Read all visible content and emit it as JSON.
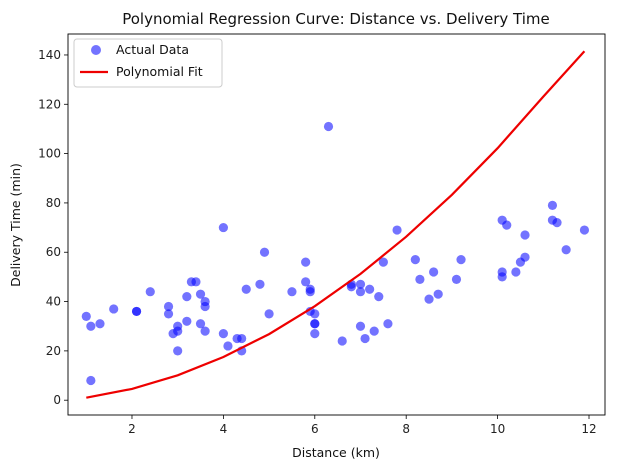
{
  "chart_data": {
    "type": "scatter",
    "title": "Polynomial Regression Curve: Distance vs. Delivery Time",
    "xlabel": "Distance (km)",
    "ylabel": "Delivery Time (min)",
    "xlim": [
      0.6,
      12.35
    ],
    "ylim": [
      -6,
      148.5
    ],
    "xticks": [
      2,
      4,
      6,
      8,
      10,
      12
    ],
    "yticks": [
      0,
      20,
      40,
      60,
      80,
      100,
      120,
      140
    ],
    "grid": false,
    "legend_position": "top-left",
    "series": [
      {
        "name": "Actual Data",
        "kind": "scatter",
        "color": "#0000ff",
        "opacity": 0.55,
        "points": [
          [
            1.0,
            34
          ],
          [
            1.1,
            8
          ],
          [
            1.1,
            30
          ],
          [
            1.3,
            31
          ],
          [
            1.6,
            37
          ],
          [
            2.1,
            36
          ],
          [
            2.1,
            36
          ],
          [
            2.4,
            44
          ],
          [
            2.8,
            35
          ],
          [
            2.8,
            38
          ],
          [
            2.9,
            27
          ],
          [
            3.0,
            30
          ],
          [
            3.0,
            20
          ],
          [
            3.0,
            28
          ],
          [
            3.2,
            32
          ],
          [
            3.2,
            42
          ],
          [
            3.3,
            48
          ],
          [
            3.4,
            48
          ],
          [
            3.5,
            31
          ],
          [
            3.5,
            43
          ],
          [
            3.6,
            40
          ],
          [
            3.6,
            38
          ],
          [
            3.6,
            28
          ],
          [
            4.0,
            27
          ],
          [
            4.0,
            70
          ],
          [
            4.1,
            22
          ],
          [
            4.3,
            25
          ],
          [
            4.4,
            20
          ],
          [
            4.4,
            25
          ],
          [
            4.5,
            45
          ],
          [
            4.8,
            47
          ],
          [
            4.9,
            60
          ],
          [
            5.0,
            35
          ],
          [
            5.5,
            44
          ],
          [
            5.8,
            48
          ],
          [
            5.8,
            56
          ],
          [
            5.9,
            36
          ],
          [
            5.9,
            44
          ],
          [
            5.9,
            45
          ],
          [
            6.0,
            31
          ],
          [
            6.0,
            31
          ],
          [
            6.0,
            35
          ],
          [
            6.0,
            27
          ],
          [
            6.3,
            111
          ],
          [
            6.6,
            24
          ],
          [
            6.8,
            46
          ],
          [
            6.8,
            47
          ],
          [
            7.0,
            47
          ],
          [
            7.0,
            30
          ],
          [
            7.0,
            44
          ],
          [
            7.1,
            25
          ],
          [
            7.2,
            45
          ],
          [
            7.3,
            28
          ],
          [
            7.4,
            42
          ],
          [
            7.5,
            56
          ],
          [
            7.6,
            31
          ],
          [
            7.8,
            69
          ],
          [
            8.2,
            57
          ],
          [
            8.3,
            49
          ],
          [
            8.5,
            41
          ],
          [
            8.6,
            52
          ],
          [
            8.7,
            43
          ],
          [
            9.1,
            49
          ],
          [
            9.2,
            57
          ],
          [
            10.1,
            73
          ],
          [
            10.1,
            52
          ],
          [
            10.1,
            50
          ],
          [
            10.2,
            71
          ],
          [
            10.4,
            52
          ],
          [
            10.5,
            56
          ],
          [
            10.6,
            67
          ],
          [
            10.6,
            58
          ],
          [
            11.2,
            79
          ],
          [
            11.2,
            73
          ],
          [
            11.3,
            72
          ],
          [
            11.5,
            61
          ],
          [
            11.9,
            69
          ]
        ]
      },
      {
        "name": "Polynomial Fit",
        "kind": "line",
        "color": "#ee0000",
        "x": [
          1.0,
          2.0,
          3.0,
          4.0,
          5.0,
          6.0,
          7.0,
          8.0,
          9.0,
          10.0,
          11.0,
          11.9
        ],
        "values": [
          1.0,
          4.6,
          10.1,
          17.5,
          26.8,
          38.1,
          51.2,
          66.3,
          83.3,
          102.2,
          123.1,
          141.5
        ]
      }
    ]
  }
}
